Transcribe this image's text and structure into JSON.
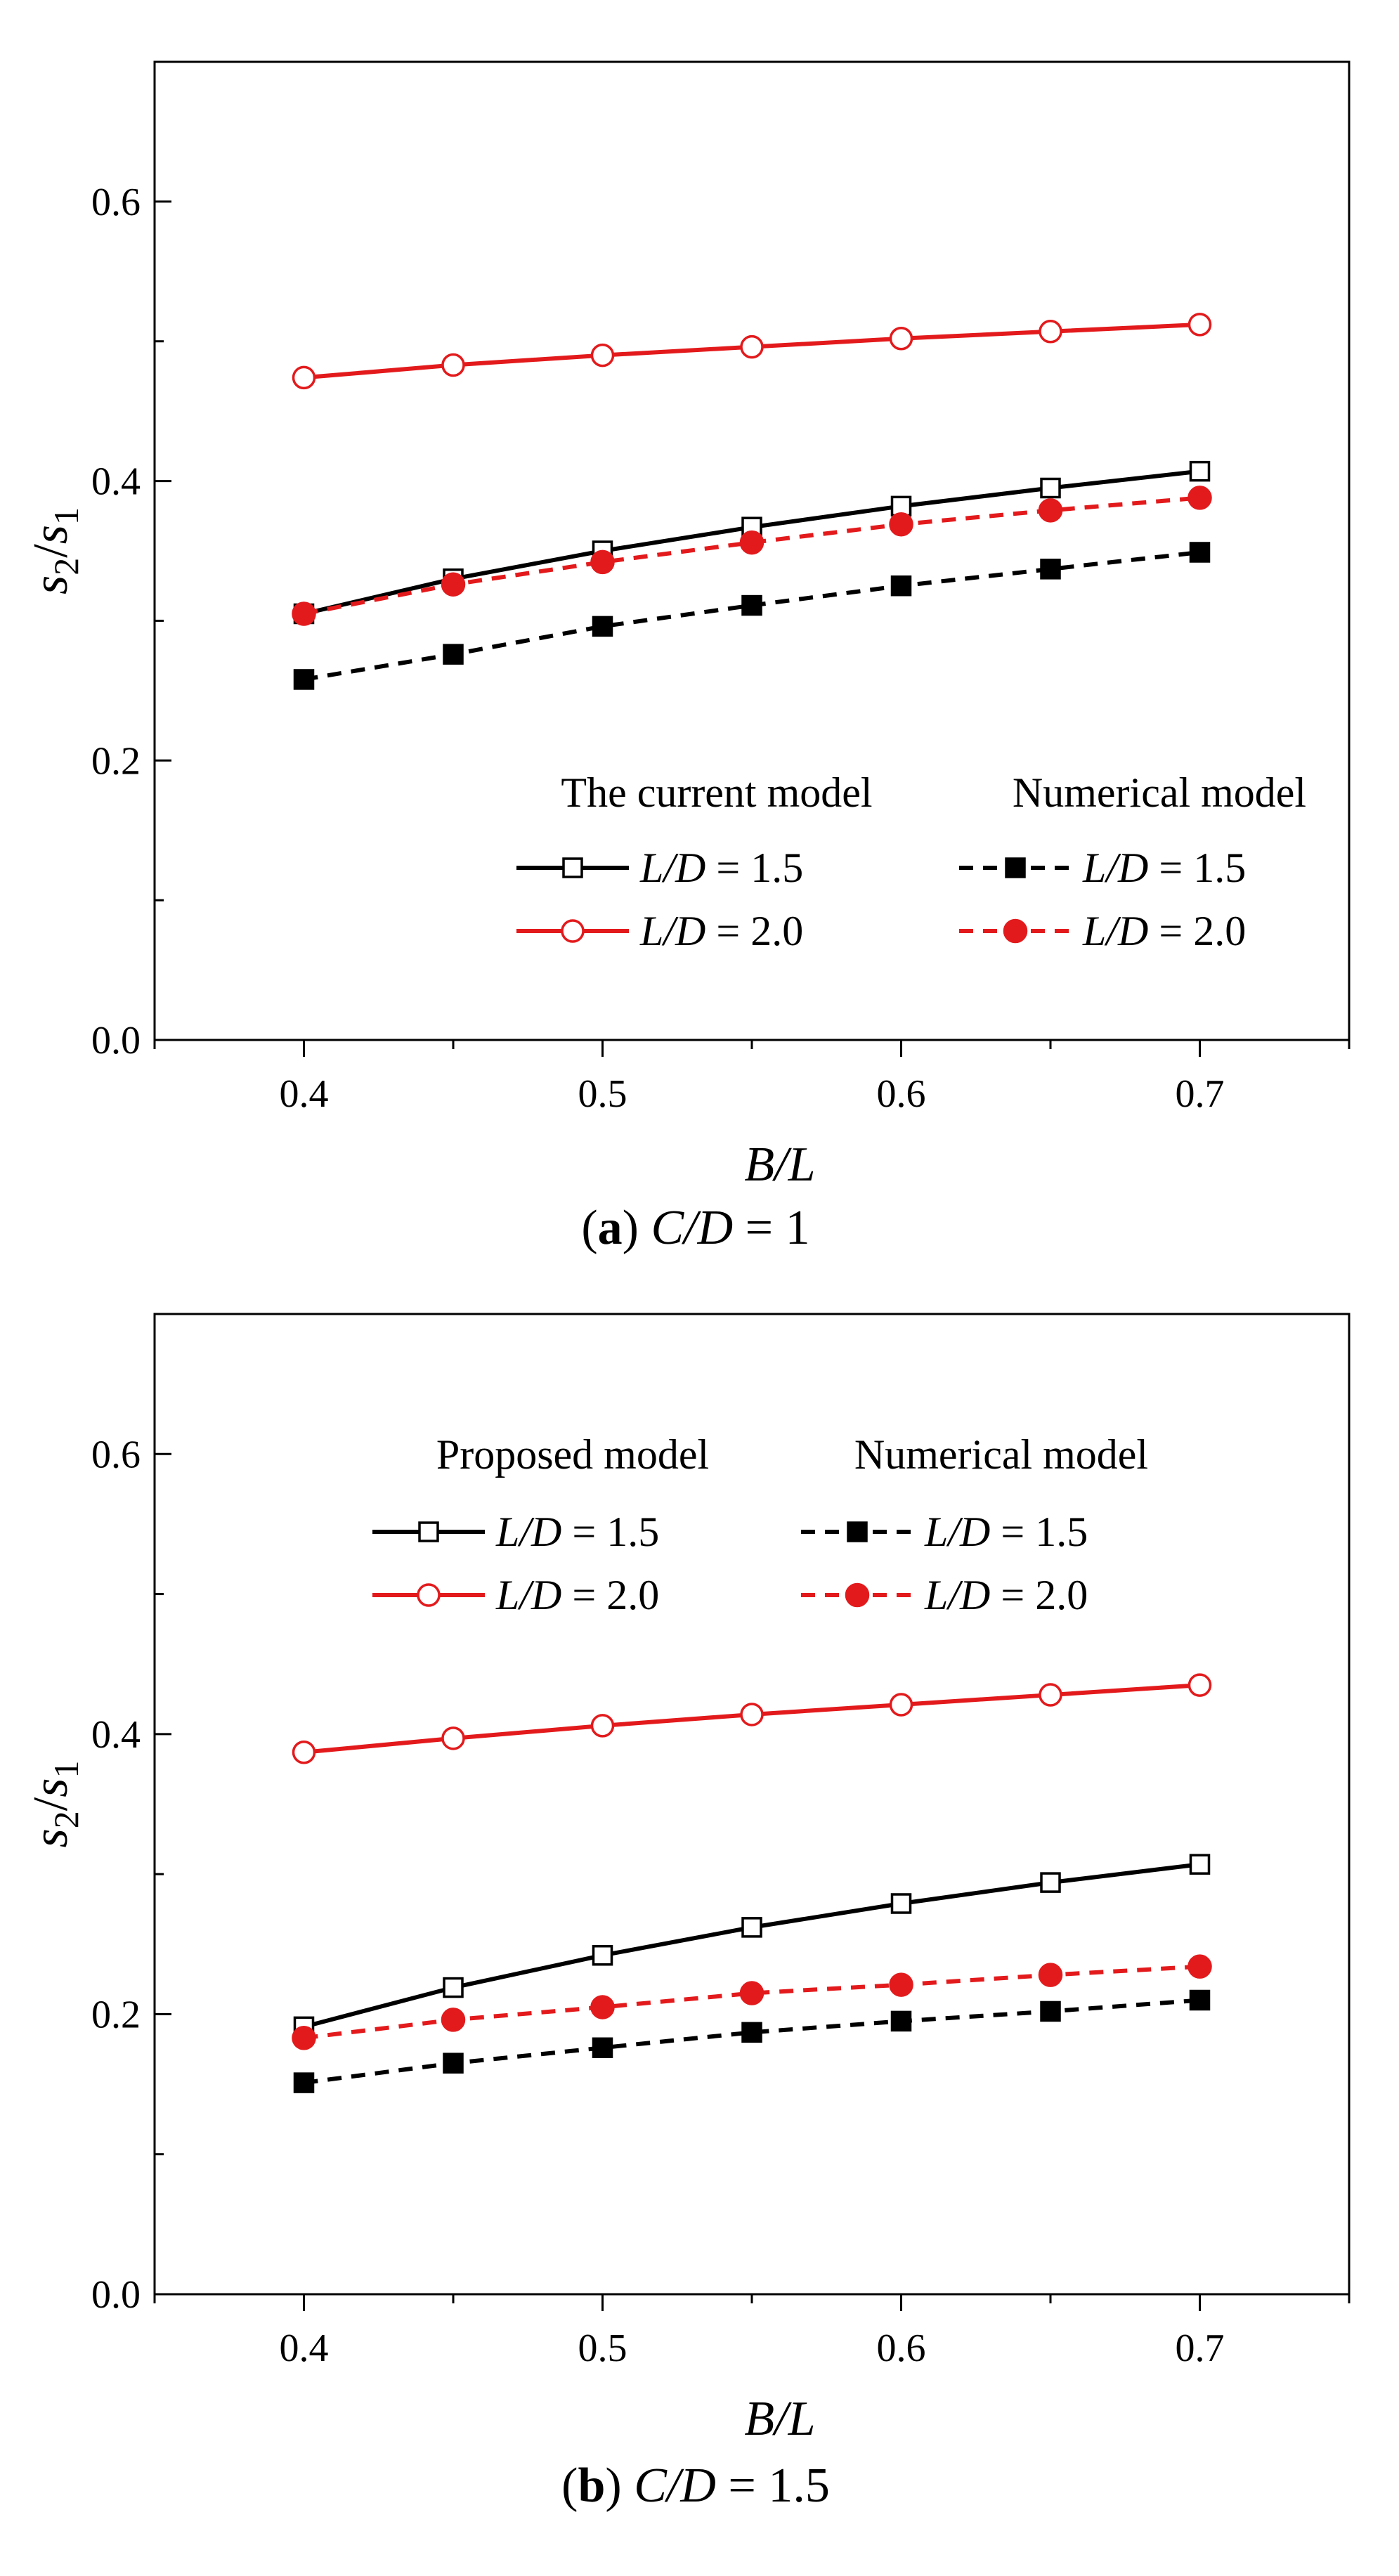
{
  "chart_data": [
    {
      "type": "line",
      "panel_label": "a",
      "caption": "C/D = 1",
      "caption_var": "C/D",
      "caption_value": "1",
      "xlabel": "B/L",
      "ylabel": "s2/s1",
      "xlim": [
        0.35,
        0.75
      ],
      "ylim": [
        0.0,
        0.7
      ],
      "xticks": [
        0.4,
        0.5,
        0.6,
        0.7
      ],
      "yticks": [
        0.0,
        0.2,
        0.4,
        0.6
      ],
      "legend": {
        "placement": "bottom-right",
        "group_titles": [
          "The current model",
          "Numerical model"
        ]
      },
      "x": [
        0.4,
        0.45,
        0.5,
        0.55,
        0.6,
        0.65,
        0.7
      ],
      "series": [
        {
          "name": "L/D = 1.5",
          "value_label": "1.5",
          "group": "The current model",
          "color": "#000000",
          "dash": "solid",
          "marker": "open-square",
          "values": [
            0.305,
            0.33,
            0.35,
            0.367,
            0.382,
            0.395,
            0.407
          ]
        },
        {
          "name": "L/D = 2.0",
          "value_label": "2.0",
          "group": "The current model",
          "color": "#e31a1c",
          "dash": "solid",
          "marker": "open-circle",
          "values": [
            0.474,
            0.483,
            0.49,
            0.496,
            0.502,
            0.507,
            0.512
          ]
        },
        {
          "name": "L/D = 1.5",
          "value_label": "1.5",
          "group": "Numerical model",
          "color": "#000000",
          "dash": "dashed",
          "marker": "filled-square",
          "values": [
            0.258,
            0.276,
            0.296,
            0.311,
            0.325,
            0.337,
            0.349
          ]
        },
        {
          "name": "L/D = 2.0",
          "value_label": "2.0",
          "group": "Numerical model",
          "color": "#e31a1c",
          "dash": "dashed",
          "marker": "filled-circle",
          "values": [
            0.305,
            0.326,
            0.342,
            0.356,
            0.369,
            0.379,
            0.388
          ]
        }
      ]
    },
    {
      "type": "line",
      "panel_label": "b",
      "caption": "C/D = 1.5",
      "caption_var": "C/D",
      "caption_value": "1.5",
      "xlabel": "B/L",
      "ylabel": "s2/s1",
      "xlim": [
        0.35,
        0.75
      ],
      "ylim": [
        0.0,
        0.7
      ],
      "xticks": [
        0.4,
        0.5,
        0.6,
        0.7
      ],
      "yticks": [
        0.0,
        0.2,
        0.4,
        0.6
      ],
      "legend": {
        "placement": "top",
        "group_titles": [
          "Proposed model",
          "Numerical model"
        ]
      },
      "x": [
        0.4,
        0.45,
        0.5,
        0.55,
        0.6,
        0.65,
        0.7
      ],
      "series": [
        {
          "name": "L/D = 1.5",
          "value_label": "1.5",
          "group": "Proposed model",
          "color": "#000000",
          "dash": "solid",
          "marker": "open-square",
          "values": [
            0.191,
            0.219,
            0.242,
            0.262,
            0.279,
            0.294,
            0.307
          ]
        },
        {
          "name": "L/D = 2.0",
          "value_label": "2.0",
          "group": "Proposed model",
          "color": "#e31a1c",
          "dash": "solid",
          "marker": "open-circle",
          "values": [
            0.387,
            0.397,
            0.406,
            0.414,
            0.421,
            0.428,
            0.435
          ]
        },
        {
          "name": "L/D = 1.5",
          "value_label": "1.5",
          "group": "Numerical model",
          "color": "#000000",
          "dash": "dashed",
          "marker": "filled-square",
          "values": [
            0.151,
            0.165,
            0.176,
            0.187,
            0.195,
            0.202,
            0.21
          ]
        },
        {
          "name": "L/D = 2.0",
          "value_label": "2.0",
          "group": "Numerical model",
          "color": "#e31a1c",
          "dash": "dashed",
          "marker": "filled-circle",
          "values": [
            0.183,
            0.196,
            0.205,
            0.215,
            0.221,
            0.228,
            0.234
          ]
        }
      ]
    }
  ]
}
